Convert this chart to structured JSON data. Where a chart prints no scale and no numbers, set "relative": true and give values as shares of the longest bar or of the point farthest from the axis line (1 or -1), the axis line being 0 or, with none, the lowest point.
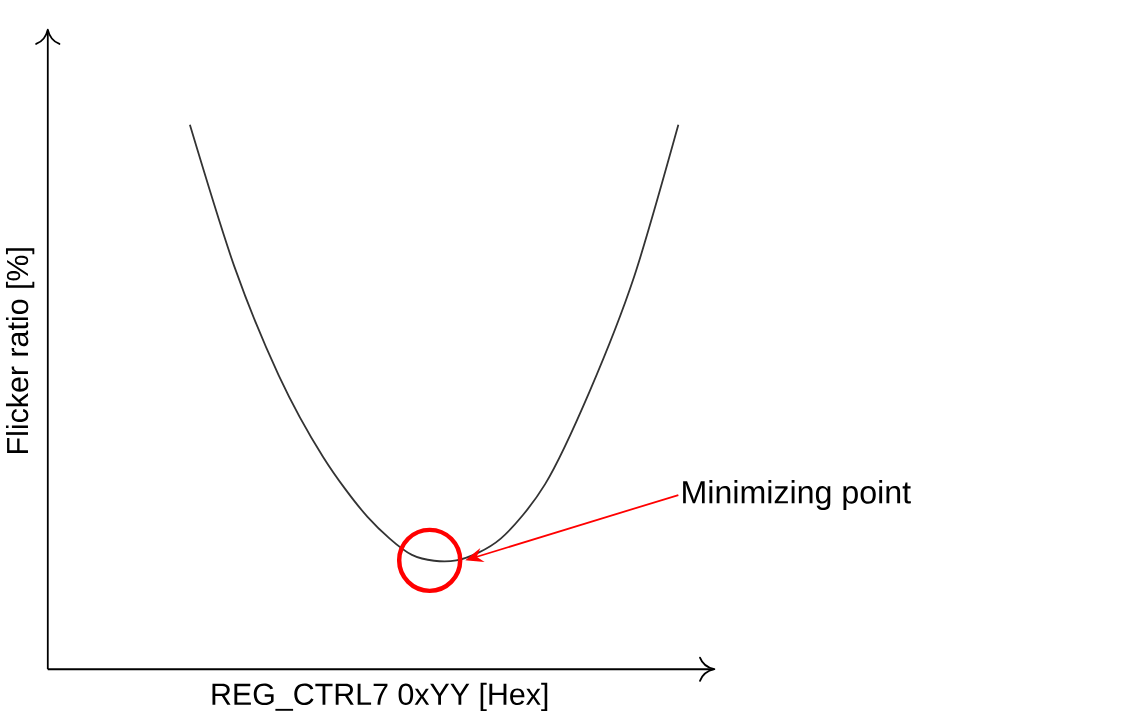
{
  "chart_data": {
    "type": "line",
    "relative": true,
    "categories": [
      null,
      null,
      null,
      null,
      null,
      null,
      null,
      null,
      null,
      null,
      null,
      null
    ],
    "values": [
      1,
      0.74,
      0.54,
      0.39,
      0.28,
      0.21,
      0.2,
      0.24,
      0.34,
      0.51,
      0.72,
      1
    ],
    "color": "#333333",
    "line_style": "solid",
    "xlabel": "REG_CTRL7 0xYY [Hex]",
    "ylabel": "Flicker ratio [%]",
    "annotations": [
      "Minimizing point"
    ]
  }
}
